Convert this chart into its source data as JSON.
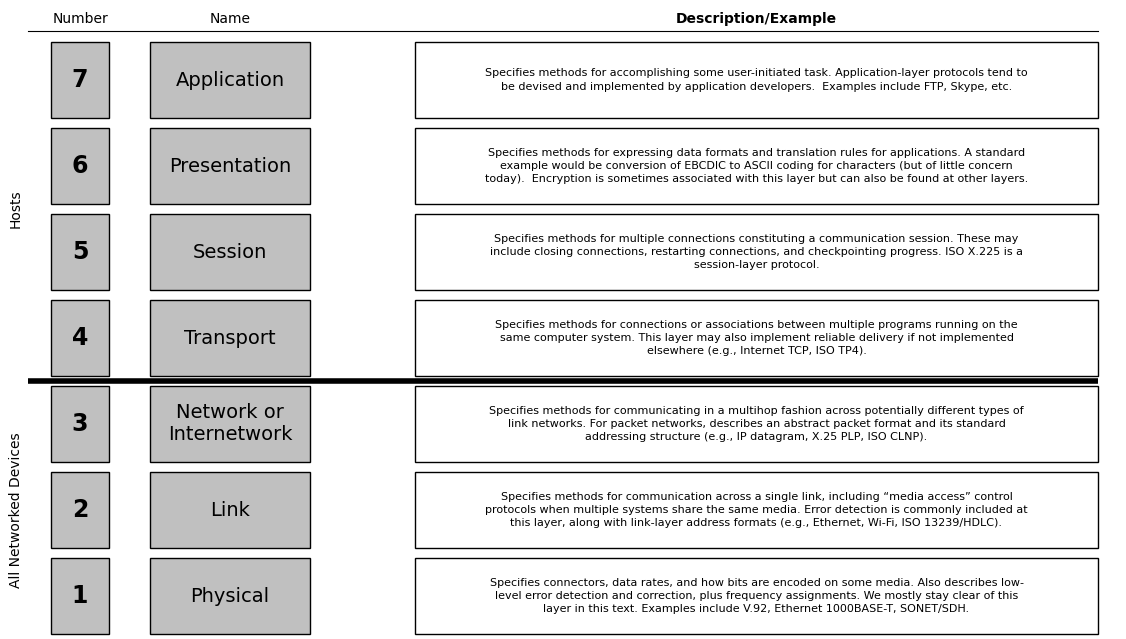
{
  "title_number": "Number",
  "title_name": "Name",
  "title_desc": "Description/Example",
  "background_color": "#ffffff",
  "box_fill_color": "#c0c0c0",
  "box_edge_color": "#000000",
  "desc_box_fill": "#ffffff",
  "desc_box_edge": "#000000",
  "text_color": "#000000",
  "layers": [
    {
      "number": "7",
      "name": "Application",
      "description": "Specifies methods for accomplishing some user-initiated task. Application-layer protocols tend to\nbe devised and implemented by application developers.  Examples include FTP, Skype, etc."
    },
    {
      "number": "6",
      "name": "Presentation",
      "description": "Specifies methods for expressing data formats and translation rules for applications. A standard\nexample would be conversion of EBCDIC to ASCII coding for characters (but of little concern\ntoday).  Encryption is sometimes associated with this layer but can also be found at other layers."
    },
    {
      "number": "5",
      "name": "Session",
      "description": "Specifies methods for multiple connections constituting a communication session. These may\ninclude closing connections, restarting connections, and checkpointing progress. ISO X.225 is a\nsession-layer protocol."
    },
    {
      "number": "4",
      "name": "Transport",
      "description": "Specifies methods for connections or associations between multiple programs running on the\nsame computer system. This layer may also implement reliable delivery if not implemented\nelsewhere (e.g., Internet TCP, ISO TP4)."
    },
    {
      "number": "3",
      "name": "Network or\nInternetwork",
      "description": "Specifies methods for communicating in a multihop fashion across potentially different types of\nlink networks. For packet networks, describes an abstract packet format and its standard\naddressing structure (e.g., IP datagram, X.25 PLP, ISO CLNP)."
    },
    {
      "number": "2",
      "name": "Link",
      "description": "Specifies methods for communication across a single link, including “media access” control\nprotocols when multiple systems share the same media. Error detection is commonly included at\nthis layer, along with link-layer address formats (e.g., Ethernet, Wi-Fi, ISO 13239/HDLC)."
    },
    {
      "number": "1",
      "name": "Physical",
      "description": "Specifies connectors, data rates, and how bits are encoded on some media. Also describes low-\nlevel error detection and correction, plus frequency assignments. We mostly stay clear of this\nlayer in this text. Examples include V.92, Ethernet 1000BASE-T, SONET/SDH."
    }
  ],
  "hosts_label": "Hosts",
  "all_devices_label": "All Networked Devices"
}
